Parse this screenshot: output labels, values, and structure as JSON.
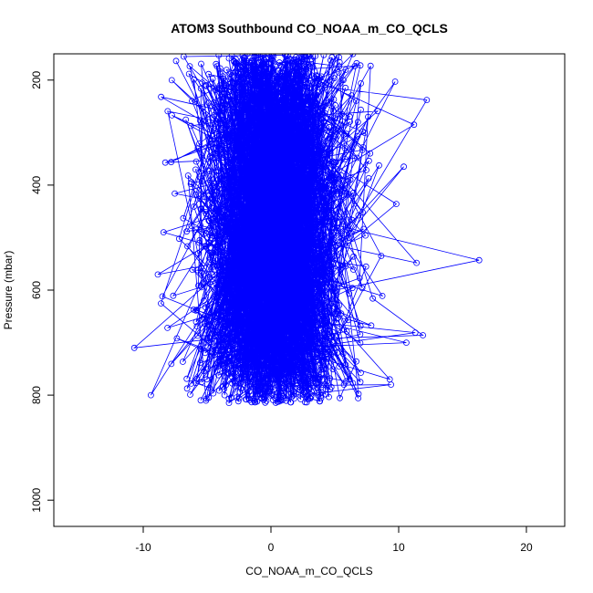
{
  "chart_data": {
    "type": "scatter",
    "title": "ATOM3 Southbound CO_NOAA_m_CO_QCLS",
    "xlabel": "CO_NOAA_m_CO_QCLS",
    "ylabel": "Pressure (mbar)",
    "xlim": [
      -17,
      23
    ],
    "ylim": [
      1050,
      150
    ],
    "y_reversed": true,
    "x_ticks": [
      -10,
      0,
      10,
      20
    ],
    "y_ticks": [
      200,
      400,
      600,
      800,
      1000
    ],
    "grid": false,
    "legend": "none",
    "marker": "open-circle",
    "connected_by_line": true,
    "series_color": "#0000ff",
    "distribution": {
      "pressure_range": [
        150,
        815
      ],
      "center": 0.3,
      "spread_sd": 2.8,
      "approx_points": 2500
    },
    "notable_points": [
      {
        "x": 16.3,
        "y": 543
      },
      {
        "x": 12.2,
        "y": 238
      },
      {
        "x": 11.4,
        "y": 548
      },
      {
        "x": 11.2,
        "y": 285
      },
      {
        "x": 11.9,
        "y": 686
      },
      {
        "x": 11.3,
        "y": 681
      },
      {
        "x": 10.6,
        "y": 700
      },
      {
        "x": 10.4,
        "y": 365
      },
      {
        "x": -10.7,
        "y": 710
      },
      {
        "x": -9.4,
        "y": 800
      },
      {
        "x": -8.6,
        "y": 232
      },
      {
        "x": -8.5,
        "y": 612
      },
      {
        "x": -8.1,
        "y": 672
      },
      {
        "x": 9.3,
        "y": 770
      },
      {
        "x": 9.4,
        "y": 780
      },
      {
        "x": 7.8,
        "y": 173
      }
    ]
  }
}
